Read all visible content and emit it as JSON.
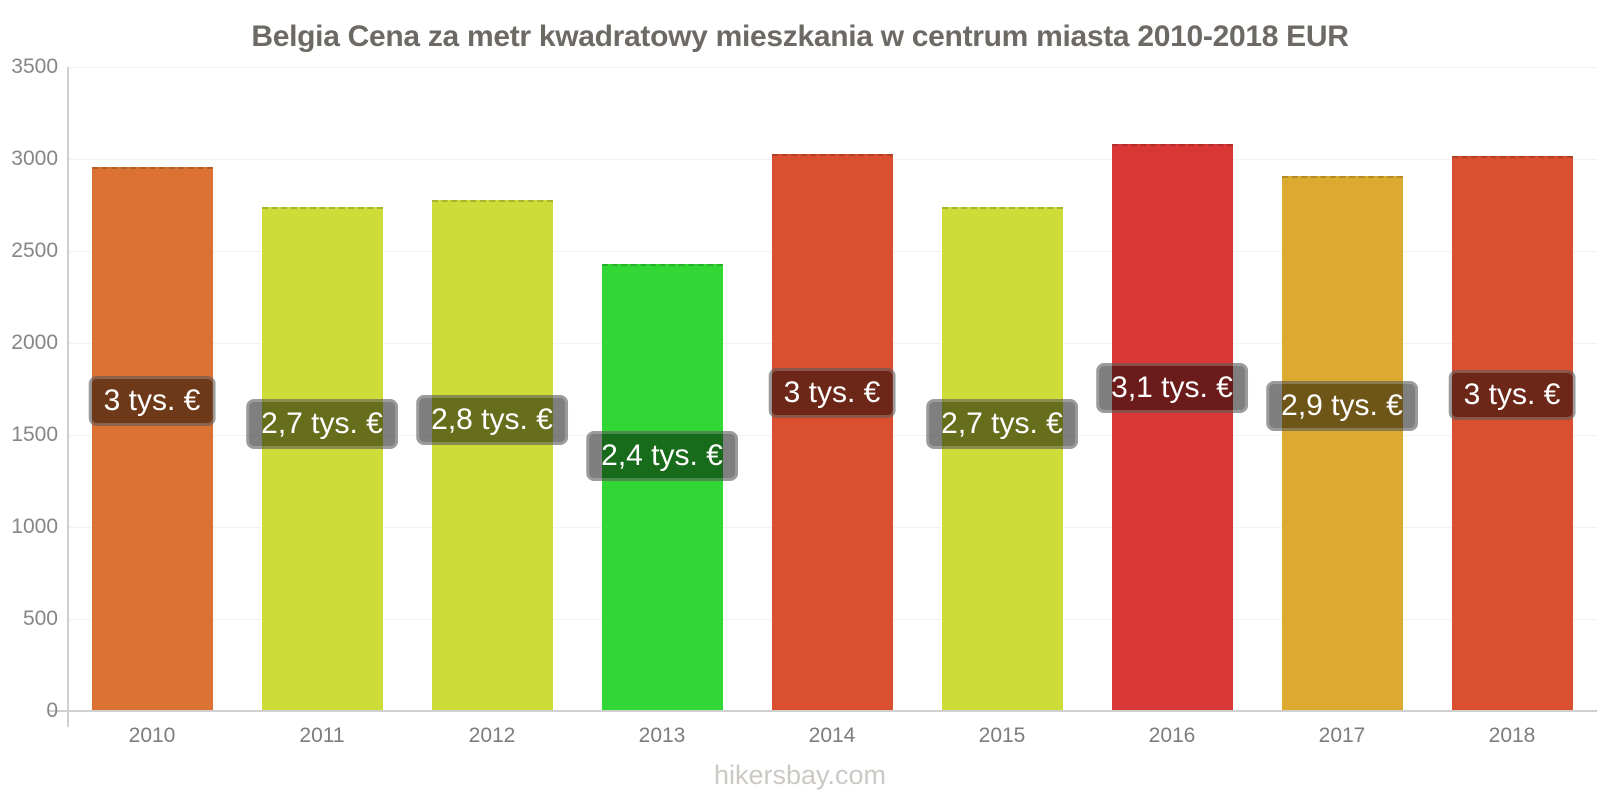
{
  "title": "Belgia Cena za metr kwadratowy mieszkania w centrum miasta 2010-2018 EUR",
  "footer": {
    "text": "hikersbay.com"
  },
  "colors": {
    "title_text": "#6d6a66",
    "axis_line": "#cfcfcf",
    "gridline": "#f2f2f2",
    "tick_text": "#868686",
    "label_pill_bg": "rgba(0,0,0,0.5)",
    "label_text": "#ffffff",
    "watermark_text": "#ccc8c4"
  },
  "chart_data": {
    "type": "bar",
    "title": "Belgia Cena za metr kwadratowy mieszkania w centrum miasta 2010-2018 EUR",
    "xlabel": "",
    "ylabel": "",
    "ylim": [
      0,
      3500
    ],
    "yticks": [
      0,
      500,
      1000,
      1500,
      2000,
      2500,
      3000,
      3500
    ],
    "grid": true,
    "legend": false,
    "categories": [
      "2010",
      "2011",
      "2012",
      "2013",
      "2014",
      "2015",
      "2016",
      "2017",
      "2018"
    ],
    "values": [
      2956,
      2740,
      2776,
      2428,
      3029,
      2739,
      3082,
      2907,
      3017
    ],
    "value_labels": [
      "3 tys. €",
      "2,7 tys. €",
      "2,8 tys. €",
      "2,4 tys. €",
      "3 tys. €",
      "2,7 tys. €",
      "3,1 tys. €",
      "2,9 tys. €",
      "3 tys. €"
    ],
    "bar_colors": [
      "#db7233",
      "#cddc39",
      "#cddc39",
      "#30d735",
      "#d94f30",
      "#cddc39",
      "#d93636",
      "#dcaa30",
      "#d94f30"
    ],
    "unit": "EUR"
  }
}
